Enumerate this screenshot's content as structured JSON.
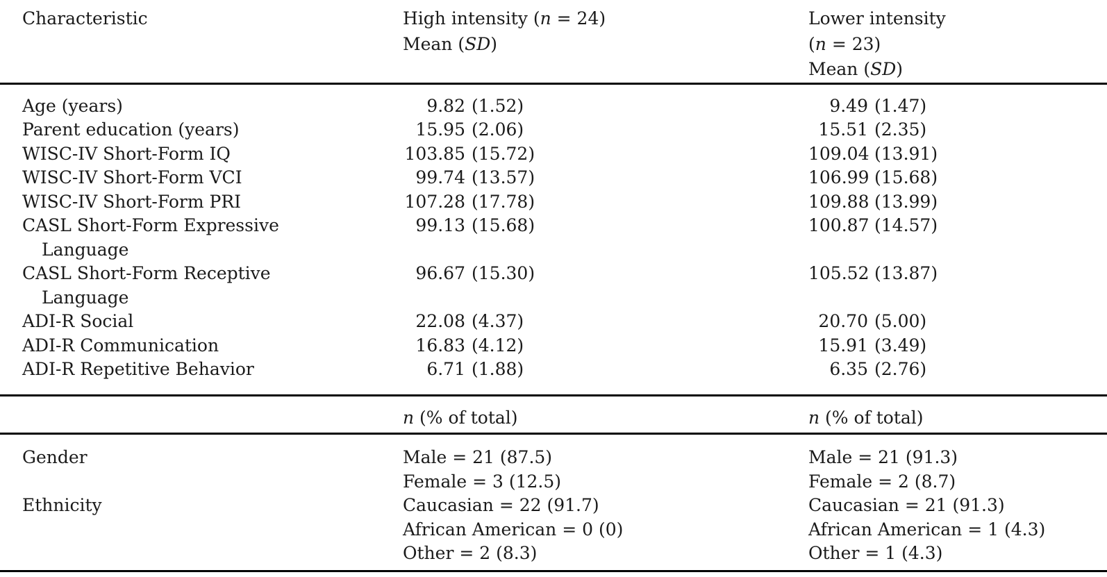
{
  "header": {
    "characteristic": "Characteristic",
    "high": {
      "title_prefix": "High intensity (",
      "n_symbol": "n",
      "n_rest": " = 24)",
      "mean_prefix": "Mean (",
      "sd_symbol": "SD",
      "mean_suffix": ")"
    },
    "lower": {
      "title": "Lower intensity",
      "n_prefix": "(",
      "n_symbol": "n",
      "n_rest": " = 23)",
      "mean_prefix": "Mean (",
      "sd_symbol": "SD",
      "mean_suffix": ")"
    }
  },
  "subheader": {
    "n_symbol": "n",
    "rest": " (% of total)"
  },
  "mean_rows": [
    {
      "label": "Age (years)",
      "high_mean": "9.82",
      "high_sd": "(1.52)",
      "low_mean": "9.49",
      "low_sd": "(1.47)"
    },
    {
      "label": "Parent education (years)",
      "high_mean": "15.95",
      "high_sd": "(2.06)",
      "low_mean": "15.51",
      "low_sd": "(2.35)"
    },
    {
      "label": "WISC-IV Short-Form IQ",
      "high_mean": "103.85",
      "high_sd": "(15.72)",
      "low_mean": "109.04",
      "low_sd": "(13.91)"
    },
    {
      "label": "WISC-IV Short-Form VCI",
      "high_mean": "99.74",
      "high_sd": "(13.57)",
      "low_mean": "106.99",
      "low_sd": "(15.68)"
    },
    {
      "label": "WISC-IV Short-Form PRI",
      "high_mean": "107.28",
      "high_sd": "(17.78)",
      "low_mean": "109.88",
      "low_sd": "(13.99)"
    },
    {
      "label": "CASL Short-Form Expressive",
      "label2": "Language",
      "high_mean": "99.13",
      "high_sd": "(15.68)",
      "low_mean": "100.87",
      "low_sd": "(14.57)"
    },
    {
      "label": "CASL Short-Form Receptive",
      "label2": "Language",
      "high_mean": "96.67",
      "high_sd": "(15.30)",
      "low_mean": "105.52",
      "low_sd": "(13.87)"
    },
    {
      "label": "ADI-R Social",
      "high_mean": "22.08",
      "high_sd": "(4.37)",
      "low_mean": "20.70",
      "low_sd": "(5.00)"
    },
    {
      "label": "ADI-R Communication",
      "high_mean": "16.83",
      "high_sd": "(4.12)",
      "low_mean": "15.91",
      "low_sd": "(3.49)"
    },
    {
      "label": "ADI-R Repetitive Behavior",
      "high_mean": "6.71",
      "high_sd": "(1.88)",
      "low_mean": "6.35",
      "low_sd": "(2.76)"
    }
  ],
  "count_rows": [
    {
      "label": "Gender",
      "high": [
        "Male = 21 (87.5)",
        "Female = 3 (12.5)"
      ],
      "low": [
        "Male = 21 (91.3)",
        "Female = 2 (8.7)"
      ]
    },
    {
      "label": "Ethnicity",
      "high": [
        "Caucasian = 22 (91.7)",
        "African American = 0 (0)",
        "Other = 2 (8.3)"
      ],
      "low": [
        "Caucasian = 21 (91.3)",
        "African American = 1 (4.3)",
        "Other = 1 (4.3)"
      ]
    }
  ]
}
